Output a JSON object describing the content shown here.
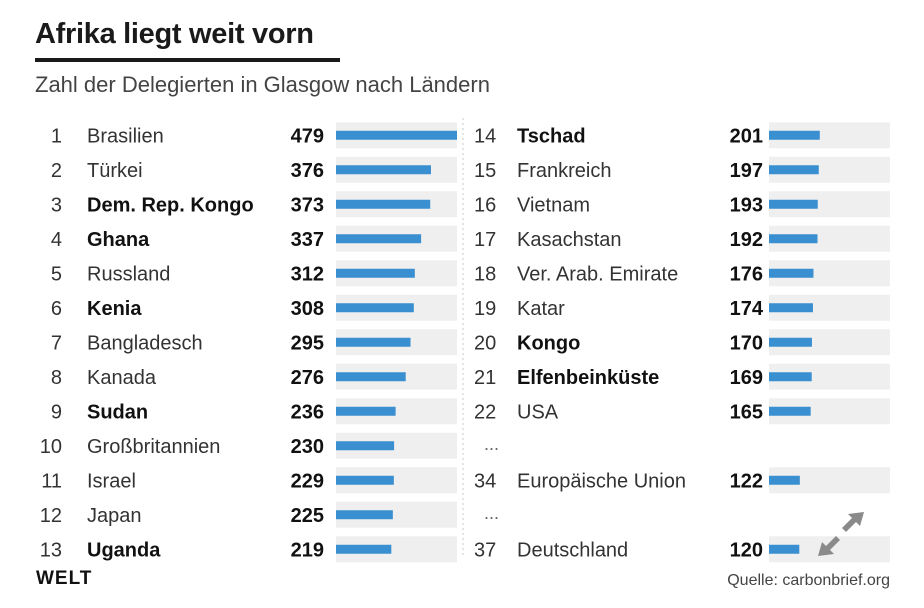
{
  "title": "Afrika liegt weit vorn",
  "subtitle": "Zahl der Delegierten in Glasgow nach Ländern",
  "brand": "WELT",
  "source": "Quelle: carbonbrief.org",
  "colors": {
    "bar": "#3a8fd0",
    "bar_track": "#efefef",
    "text": "#222222"
  },
  "icons": {
    "expand": "expand-diagonal-arrows-icon"
  },
  "chart_data": {
    "type": "bar",
    "orientation": "horizontal",
    "title": "Afrika liegt weit vorn",
    "subtitle": "Zahl der Delegierten in Glasgow nach Ländern",
    "xlim": [
      0,
      479
    ],
    "columns": [
      {
        "rows": [
          {
            "rank": "1",
            "country": "Brasilien",
            "value": 479,
            "african": false
          },
          {
            "rank": "2",
            "country": "Türkei",
            "value": 376,
            "african": false
          },
          {
            "rank": "3",
            "country": "Dem. Rep. Kongo",
            "value": 373,
            "african": true
          },
          {
            "rank": "4",
            "country": "Ghana",
            "value": 337,
            "african": true
          },
          {
            "rank": "5",
            "country": "Russland",
            "value": 312,
            "african": false
          },
          {
            "rank": "6",
            "country": "Kenia",
            "value": 308,
            "african": true
          },
          {
            "rank": "7",
            "country": "Bangladesch",
            "value": 295,
            "african": false
          },
          {
            "rank": "8",
            "country": "Kanada",
            "value": 276,
            "african": false
          },
          {
            "rank": "9",
            "country": "Sudan",
            "value": 236,
            "african": true
          },
          {
            "rank": "10",
            "country": "Großbritannien",
            "value": 230,
            "african": false
          },
          {
            "rank": "11",
            "country": "Israel",
            "value": 229,
            "african": false
          },
          {
            "rank": "12",
            "country": "Japan",
            "value": 225,
            "african": false
          },
          {
            "rank": "13",
            "country": "Uganda",
            "value": 219,
            "african": true
          }
        ]
      },
      {
        "rows": [
          {
            "rank": "14",
            "country": "Tschad",
            "value": 201,
            "african": true
          },
          {
            "rank": "15",
            "country": "Frankreich",
            "value": 197,
            "african": false
          },
          {
            "rank": "16",
            "country": "Vietnam",
            "value": 193,
            "african": false
          },
          {
            "rank": "17",
            "country": "Kasachstan",
            "value": 192,
            "african": false
          },
          {
            "rank": "18",
            "country": "Ver. Arab. Emirate",
            "value": 176,
            "african": false
          },
          {
            "rank": "19",
            "country": "Katar",
            "value": 174,
            "african": false
          },
          {
            "rank": "20",
            "country": "Kongo",
            "value": 170,
            "african": true
          },
          {
            "rank": "21",
            "country": "Elfenbeinküste",
            "value": 169,
            "african": true
          },
          {
            "rank": "22",
            "country": "USA",
            "value": 165,
            "african": false
          },
          {
            "ellipsis": "..."
          },
          {
            "rank": "34",
            "country": "Europäische Union",
            "value": 122,
            "african": false
          },
          {
            "ellipsis": "..."
          },
          {
            "rank": "37",
            "country": "Deutschland",
            "value": 120,
            "african": false
          }
        ]
      }
    ]
  }
}
